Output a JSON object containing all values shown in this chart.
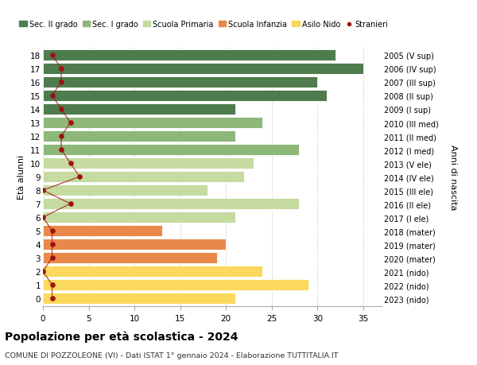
{
  "ages": [
    0,
    1,
    2,
    3,
    4,
    5,
    6,
    7,
    8,
    9,
    10,
    11,
    12,
    13,
    14,
    15,
    16,
    17,
    18
  ],
  "bar_values": [
    21,
    29,
    24,
    19,
    20,
    13,
    21,
    28,
    18,
    22,
    23,
    28,
    21,
    24,
    21,
    31,
    30,
    35,
    32
  ],
  "stranieri": [
    1,
    1,
    0,
    1,
    1,
    1,
    0,
    3,
    0,
    4,
    3,
    2,
    2,
    3,
    2,
    1,
    2,
    2,
    1
  ],
  "bar_colors": [
    "#FAD95C",
    "#FAD95C",
    "#FAD95C",
    "#E8894A",
    "#E8894A",
    "#E8894A",
    "#C5DBA0",
    "#C5DBA0",
    "#C5DBA0",
    "#C5DBA0",
    "#C5DBA0",
    "#8DB87A",
    "#8DB87A",
    "#8DB87A",
    "#4E7C4E",
    "#4E7C4E",
    "#4E7C4E",
    "#4E7C4E",
    "#4E7C4E"
  ],
  "right_labels": [
    "2023 (nido)",
    "2022 (nido)",
    "2021 (nido)",
    "2020 (mater)",
    "2019 (mater)",
    "2018 (mater)",
    "2017 (I ele)",
    "2016 (II ele)",
    "2015 (III ele)",
    "2014 (IV ele)",
    "2013 (V ele)",
    "2012 (I med)",
    "2011 (II med)",
    "2010 (III med)",
    "2009 (I sup)",
    "2008 (II sup)",
    "2007 (III sup)",
    "2006 (IV sup)",
    "2005 (V sup)"
  ],
  "legend_labels": [
    "Sec. II grado",
    "Sec. I grado",
    "Scuola Primaria",
    "Scuola Infanzia",
    "Asilo Nido",
    "Stranieri"
  ],
  "legend_colors": [
    "#4E7C4E",
    "#8DB87A",
    "#C5DBA0",
    "#E8894A",
    "#FAD95C",
    "#A01010"
  ],
  "ylabel": "Età alunni",
  "right_ylabel": "Anni di nascita",
  "title": "Popolazione per età scolastica - 2024",
  "subtitle": "COMUNE DI POZZOLEONE (VI) - Dati ISTAT 1° gennaio 2024 - Elaborazione TUTTITALIA.IT",
  "xlim": [
    0,
    37
  ],
  "xticks": [
    0,
    5,
    10,
    15,
    20,
    25,
    30,
    35
  ],
  "bg_color": "#FFFFFF",
  "grid_color": "#CCCCCC",
  "stranieri_color": "#A01010"
}
